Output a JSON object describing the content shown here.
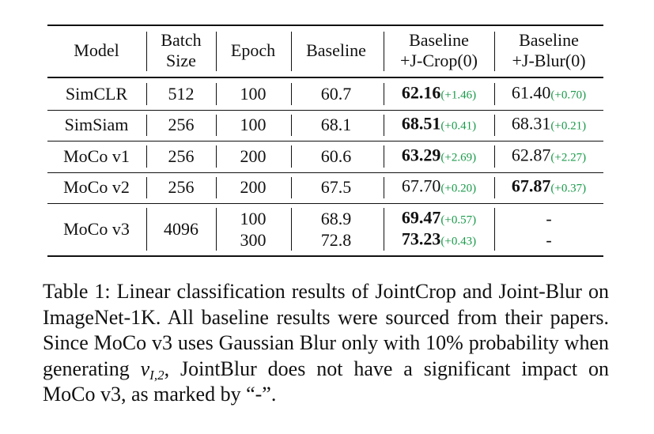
{
  "table": {
    "header": [
      [
        "Model"
      ],
      [
        "Batch",
        "Size"
      ],
      [
        "Epoch"
      ],
      [
        "Baseline"
      ],
      [
        "Baseline",
        "+J-Crop(0)"
      ],
      [
        "Baseline",
        "+J-Blur(0)"
      ]
    ],
    "rows": [
      {
        "model": "SimCLR",
        "batch": "512",
        "results": [
          {
            "epoch": "100",
            "baseline": "60.7",
            "jcrop": {
              "value": "62.16",
              "delta": "(+1.46)",
              "bold": true
            },
            "jblur": {
              "value": "61.40",
              "delta": "(+0.70)",
              "bold": false
            }
          }
        ]
      },
      {
        "model": "SimSiam",
        "batch": "256",
        "results": [
          {
            "epoch": "100",
            "baseline": "68.1",
            "jcrop": {
              "value": "68.51",
              "delta": "(+0.41)",
              "bold": true
            },
            "jblur": {
              "value": "68.31",
              "delta": "(+0.21)",
              "bold": false
            }
          }
        ]
      },
      {
        "model": "MoCo v1",
        "batch": "256",
        "results": [
          {
            "epoch": "200",
            "baseline": "60.6",
            "jcrop": {
              "value": "63.29",
              "delta": "(+2.69)",
              "bold": true
            },
            "jblur": {
              "value": "62.87",
              "delta": "(+2.27)",
              "bold": false
            }
          }
        ]
      },
      {
        "model": "MoCo v2",
        "batch": "256",
        "results": [
          {
            "epoch": "200",
            "baseline": "67.5",
            "jcrop": {
              "value": "67.70",
              "delta": "(+0.20)",
              "bold": false
            },
            "jblur": {
              "value": "67.87",
              "delta": "(+0.37)",
              "bold": true
            }
          }
        ]
      },
      {
        "model": "MoCo v3",
        "batch": "4096",
        "results": [
          {
            "epoch": "100",
            "baseline": "68.9",
            "jcrop": {
              "value": "69.47",
              "delta": "(+0.57)",
              "bold": true
            },
            "jblur": {
              "value": "-",
              "bold": false
            }
          },
          {
            "epoch": "300",
            "baseline": "72.8",
            "jcrop": {
              "value": "73.23",
              "delta": "(+0.43)",
              "bold": true
            },
            "jblur": {
              "value": "-",
              "bold": false
            }
          }
        ]
      }
    ]
  },
  "caption": {
    "before": "Table 1: Linear classification results of JointCrop and Joint-Blur on ImageNet-1K. All baseline results were sourced from their papers. Since MoCo v3 uses Gaussian Blur only with 10% probability when generating ",
    "math": {
      "base": "v",
      "sub": "I,2"
    },
    "after": ", JointBlur does not have a significant impact on MoCo v3, as marked by “-”."
  }
}
